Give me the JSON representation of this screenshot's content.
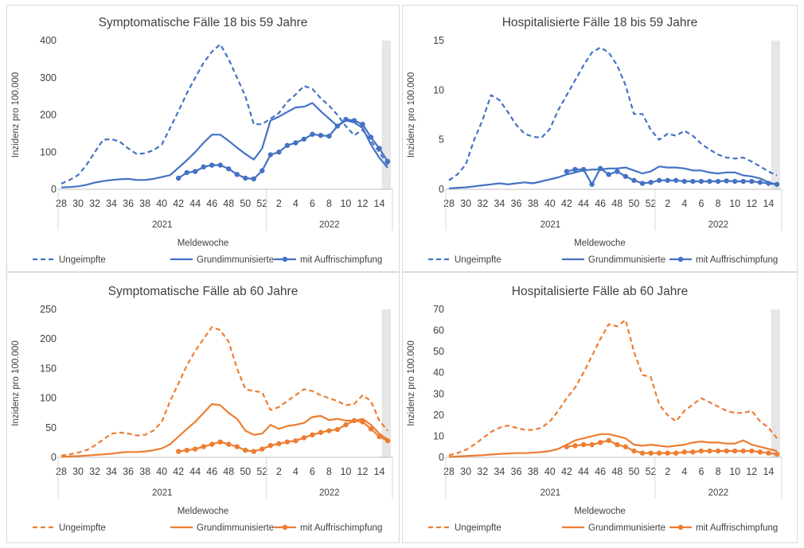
{
  "chart_data": [
    {
      "type": "line",
      "title": "Symptomatische Fälle 18 bis 59 Jahre",
      "ylabel": "Inzidenz pro 100.000",
      "xlabel": "Meldewoche",
      "ylim": [
        0,
        400
      ],
      "yticks": [
        "0",
        "100",
        "200",
        "300",
        "400"
      ],
      "x_tick_labels": [
        "28",
        "30",
        "32",
        "34",
        "36",
        "38",
        "40",
        "42",
        "44",
        "46",
        "48",
        "50",
        "52",
        "2",
        "4",
        "6",
        "8",
        "10",
        "12",
        "14"
      ],
      "year_labels": [
        "2021",
        "2022"
      ],
      "color": "#4472c4",
      "x": [
        "28",
        "29",
        "30",
        "31",
        "32",
        "33",
        "34",
        "35",
        "36",
        "37",
        "38",
        "39",
        "40",
        "41",
        "42",
        "43",
        "44",
        "45",
        "46",
        "47",
        "48",
        "49",
        "50",
        "51",
        "52",
        "1",
        "2",
        "3",
        "4",
        "5",
        "6",
        "7",
        "8",
        "9",
        "10",
        "11",
        "12",
        "13",
        "14",
        "15"
      ],
      "series": [
        {
          "name": "Ungeimpfte",
          "style": "dashed",
          "values": [
            15,
            25,
            38,
            65,
            100,
            133,
            135,
            128,
            110,
            95,
            97,
            105,
            120,
            165,
            210,
            258,
            300,
            340,
            370,
            390,
            350,
            300,
            250,
            175,
            175,
            190,
            205,
            235,
            255,
            278,
            270,
            245,
            225,
            200,
            170,
            145,
            160,
            130,
            100,
            65
          ]
        },
        {
          "name": "Grundimmunisierte",
          "style": "solid",
          "values": [
            5,
            6,
            8,
            12,
            18,
            22,
            25,
            27,
            28,
            25,
            25,
            28,
            33,
            38,
            58,
            78,
            100,
            125,
            147,
            147,
            130,
            112,
            95,
            80,
            110,
            185,
            195,
            208,
            220,
            222,
            232,
            210,
            190,
            170,
            185,
            180,
            165,
            120,
            85,
            58
          ]
        },
        {
          "name": "mit Auffrischimpfung",
          "style": "marker",
          "values": [
            null,
            null,
            null,
            null,
            null,
            null,
            null,
            null,
            null,
            null,
            null,
            null,
            null,
            null,
            30,
            45,
            48,
            60,
            65,
            65,
            55,
            40,
            30,
            28,
            50,
            93,
            100,
            118,
            125,
            135,
            148,
            145,
            143,
            170,
            188,
            185,
            175,
            140,
            110,
            75
          ]
        }
      ]
    },
    {
      "type": "line",
      "title": "Hospitalisierte Fälle 18 bis 59 Jahre",
      "ylabel": "Inzidenz pro 100.000",
      "xlabel": "Meldewoche",
      "ylim": [
        0,
        15
      ],
      "yticks": [
        "0",
        "5",
        "10",
        "15"
      ],
      "x_tick_labels": [
        "28",
        "30",
        "32",
        "34",
        "36",
        "38",
        "40",
        "42",
        "44",
        "46",
        "48",
        "50",
        "52",
        "2",
        "4",
        "6",
        "8",
        "10",
        "12",
        "14"
      ],
      "year_labels": [
        "2021",
        "2022"
      ],
      "color": "#4472c4",
      "x": [
        "28",
        "29",
        "30",
        "31",
        "32",
        "33",
        "34",
        "35",
        "36",
        "37",
        "38",
        "39",
        "40",
        "41",
        "42",
        "43",
        "44",
        "45",
        "46",
        "47",
        "48",
        "49",
        "50",
        "51",
        "52",
        "1",
        "2",
        "3",
        "4",
        "5",
        "6",
        "7",
        "8",
        "9",
        "10",
        "11",
        "12",
        "13",
        "14",
        "15"
      ],
      "series": [
        {
          "name": "Ungeimpfte",
          "style": "dashed",
          "values": [
            0.9,
            1.5,
            2.5,
            5.0,
            7.0,
            9.5,
            9.0,
            7.8,
            6.5,
            5.6,
            5.3,
            5.2,
            6.1,
            8.0,
            9.5,
            11.0,
            12.5,
            13.8,
            14.3,
            13.8,
            12.5,
            10.5,
            7.6,
            7.6,
            6.0,
            5.0,
            5.6,
            5.4,
            5.9,
            5.4,
            4.6,
            4.0,
            3.5,
            3.2,
            3.1,
            3.2,
            2.8,
            2.3,
            1.8,
            1.4
          ]
        },
        {
          "name": "Grundimmunisierte",
          "style": "solid",
          "values": [
            0.1,
            0.15,
            0.2,
            0.3,
            0.4,
            0.5,
            0.6,
            0.5,
            0.6,
            0.7,
            0.6,
            0.8,
            1.0,
            1.2,
            1.5,
            1.7,
            1.9,
            2.0,
            2.0,
            2.1,
            2.1,
            2.2,
            1.9,
            1.6,
            1.8,
            2.3,
            2.2,
            2.2,
            2.1,
            1.9,
            1.9,
            1.7,
            1.6,
            1.7,
            1.7,
            1.4,
            1.3,
            1.1,
            0.7,
            0.5
          ]
        },
        {
          "name": "mit Auffrischimpfung",
          "style": "marker",
          "values": [
            null,
            null,
            null,
            null,
            null,
            null,
            null,
            null,
            null,
            null,
            null,
            null,
            null,
            null,
            1.8,
            2.0,
            2.0,
            0.5,
            2.1,
            1.5,
            1.8,
            1.3,
            0.9,
            0.6,
            0.7,
            0.9,
            0.9,
            0.9,
            0.8,
            0.8,
            0.8,
            0.8,
            0.8,
            0.85,
            0.8,
            0.8,
            0.8,
            0.7,
            0.6,
            0.5
          ]
        }
      ]
    },
    {
      "type": "line",
      "title": "Symptomatische Fälle ab 60 Jahre",
      "ylabel": "Inzidenz pro 100.000",
      "xlabel": "Meldewoche",
      "ylim": [
        0,
        250
      ],
      "yticks": [
        "0",
        "50",
        "100",
        "150",
        "200",
        "250"
      ],
      "x_tick_labels": [
        "28",
        "30",
        "32",
        "34",
        "36",
        "38",
        "40",
        "42",
        "44",
        "46",
        "48",
        "50",
        "52",
        "2",
        "4",
        "6",
        "8",
        "10",
        "12",
        "14"
      ],
      "year_labels": [
        "2021",
        "2022"
      ],
      "color": "#ed7d31",
      "x": [
        "28",
        "29",
        "30",
        "31",
        "32",
        "33",
        "34",
        "35",
        "36",
        "37",
        "38",
        "39",
        "40",
        "41",
        "42",
        "43",
        "44",
        "45",
        "46",
        "47",
        "48",
        "49",
        "50",
        "51",
        "52",
        "1",
        "2",
        "3",
        "4",
        "5",
        "6",
        "7",
        "8",
        "9",
        "10",
        "11",
        "12",
        "13",
        "14",
        "15"
      ],
      "series": [
        {
          "name": "Ungeimpfte",
          "style": "dashed",
          "values": [
            3,
            5,
            8,
            12,
            20,
            30,
            40,
            42,
            40,
            37,
            38,
            45,
            60,
            95,
            125,
            155,
            180,
            200,
            220,
            215,
            195,
            150,
            115,
            112,
            110,
            80,
            85,
            95,
            105,
            115,
            112,
            105,
            100,
            95,
            88,
            90,
            105,
            95,
            62,
            45
          ]
        },
        {
          "name": "Grundimmunisierte",
          "style": "solid",
          "values": [
            1,
            1.5,
            2,
            3,
            4,
            5,
            6,
            8,
            9,
            9,
            10,
            12,
            15,
            22,
            35,
            48,
            60,
            75,
            90,
            88,
            75,
            65,
            45,
            38,
            40,
            55,
            48,
            53,
            55,
            58,
            68,
            70,
            63,
            65,
            62,
            62,
            65,
            55,
            40,
            30
          ]
        },
        {
          "name": "mit Auffrischimpfung",
          "style": "marker",
          "values": [
            null,
            null,
            null,
            null,
            null,
            null,
            null,
            null,
            null,
            null,
            null,
            null,
            null,
            null,
            10,
            12,
            14,
            18,
            22,
            26,
            22,
            18,
            12,
            10,
            14,
            20,
            23,
            26,
            28,
            33,
            38,
            42,
            45,
            47,
            55,
            62,
            60,
            48,
            35,
            28
          ]
        }
      ]
    },
    {
      "type": "line",
      "title": "Hospitalisierte Fälle ab 60 Jahre",
      "ylabel": "Inzidenz pro 100.000",
      "xlabel": "Meldewoche",
      "ylim": [
        0,
        70
      ],
      "yticks": [
        "0",
        "10",
        "20",
        "30",
        "40",
        "50",
        "60",
        "70"
      ],
      "x_tick_labels": [
        "28",
        "30",
        "32",
        "34",
        "36",
        "38",
        "40",
        "42",
        "44",
        "46",
        "48",
        "50",
        "52",
        "2",
        "4",
        "6",
        "8",
        "10",
        "12",
        "14"
      ],
      "year_labels": [
        "2021",
        "2022"
      ],
      "color": "#ed7d31",
      "x": [
        "28",
        "29",
        "30",
        "31",
        "32",
        "33",
        "34",
        "35",
        "36",
        "37",
        "38",
        "39",
        "40",
        "41",
        "42",
        "43",
        "44",
        "45",
        "46",
        "47",
        "48",
        "49",
        "50",
        "51",
        "52",
        "1",
        "2",
        "3",
        "4",
        "5",
        "6",
        "7",
        "8",
        "9",
        "10",
        "11",
        "12",
        "13",
        "14",
        "15"
      ],
      "series": [
        {
          "name": "Ungeimpfte",
          "style": "dashed",
          "values": [
            1,
            2,
            3.5,
            6,
            9,
            12,
            14,
            15,
            14,
            13,
            13,
            14,
            17,
            22,
            28,
            33,
            40,
            48,
            56,
            63,
            62,
            65,
            50,
            39,
            38,
            25,
            20,
            17,
            22,
            25,
            28,
            26,
            24,
            22,
            21,
            21,
            22,
            17,
            14,
            9
          ]
        },
        {
          "name": "Grundimmunisierte",
          "style": "solid",
          "values": [
            0.2,
            0.4,
            0.6,
            0.8,
            1,
            1.3,
            1.6,
            1.8,
            2,
            2,
            2.2,
            2.5,
            3,
            4,
            6,
            8,
            9,
            10,
            11,
            11,
            10,
            9,
            6,
            5.5,
            6,
            5.5,
            5,
            5.5,
            6,
            7,
            7.5,
            7,
            7,
            6.5,
            6.5,
            8,
            6,
            5,
            4,
            3
          ]
        },
        {
          "name": "mit Auffrischimpfung",
          "style": "marker",
          "values": [
            null,
            null,
            null,
            null,
            null,
            null,
            null,
            null,
            null,
            null,
            null,
            null,
            null,
            null,
            5,
            5.5,
            6,
            6,
            7,
            8,
            6,
            5,
            3,
            2,
            2,
            2,
            2,
            2,
            2.5,
            2.5,
            3,
            3,
            3,
            3,
            3,
            3,
            3,
            2.5,
            2,
            1.5
          ]
        }
      ]
    }
  ]
}
